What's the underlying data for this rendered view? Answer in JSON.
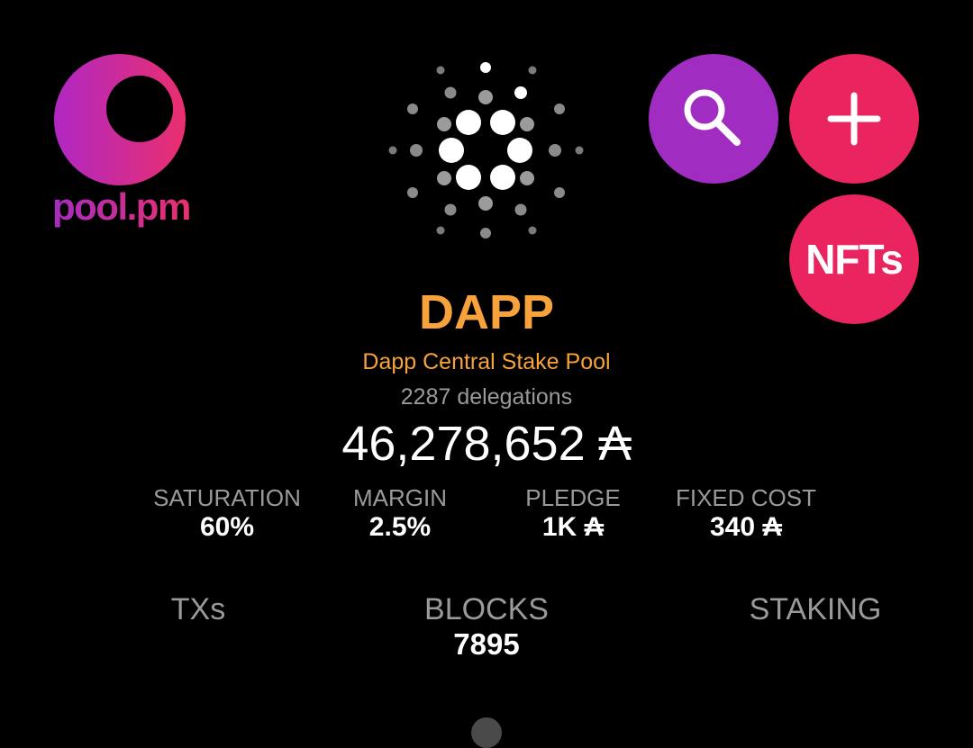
{
  "brand": {
    "logo_text": "pool.pm"
  },
  "actions": {
    "search_icon": "search-icon",
    "add_icon": "plus-icon",
    "nfts_label": "NFTs"
  },
  "pool": {
    "ticker": "DAPP",
    "name": "Dapp Central Stake Pool",
    "delegations": "2287 delegations",
    "live_stake": "46,278,652 ₳"
  },
  "stats": {
    "saturation": {
      "label": "SATURATION",
      "value": "60%"
    },
    "margin": {
      "label": "MARGIN",
      "value": "2.5%"
    },
    "pledge": {
      "label": "PLEDGE",
      "value": "1K ₳"
    },
    "fixed_cost": {
      "label": "FIXED COST",
      "value": "340 ₳"
    }
  },
  "tabs": {
    "txs": {
      "label": "TXs"
    },
    "blocks": {
      "label": "BLOCKS",
      "value": "7895"
    },
    "staking": {
      "label": "STAKING"
    }
  },
  "colors": {
    "accent_orange": "#f7a23b",
    "search_purple": "#a12cc2",
    "action_pink": "#e9245f",
    "muted_gray": "#9a9a9a"
  }
}
